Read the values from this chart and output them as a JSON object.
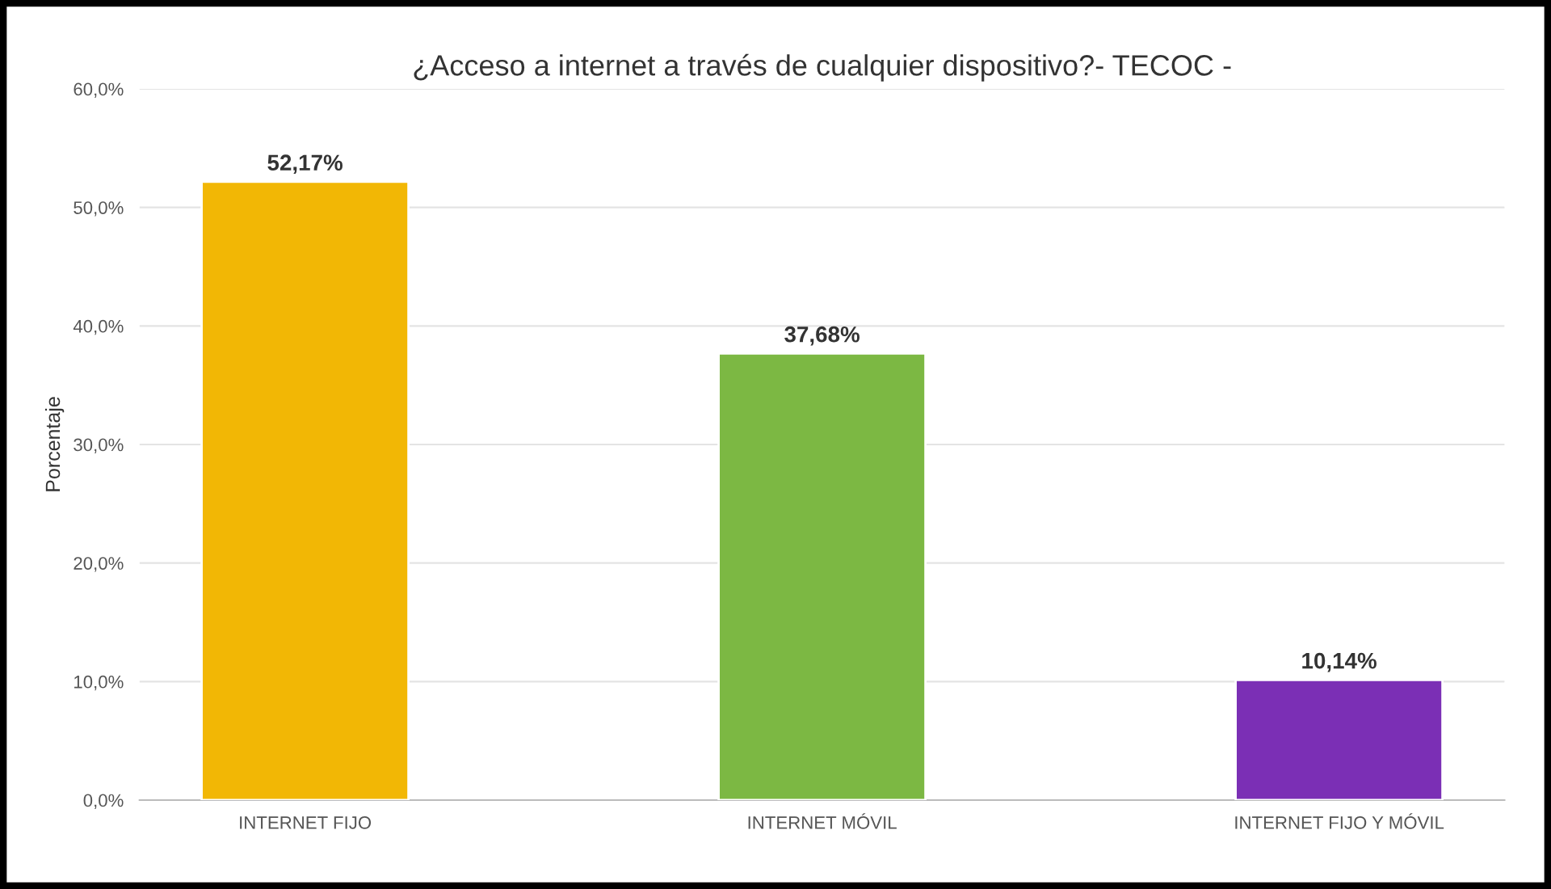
{
  "chart_data": {
    "type": "bar",
    "title": "¿Acceso a internet a través de cualquier dispositivo?- TECOC -",
    "ylabel": "Porcentaje",
    "categories": [
      "INTERNET FIJO",
      "INTERNET MÓVIL",
      "INTERNET FIJO Y MÓVIL"
    ],
    "values": [
      52.17,
      37.68,
      10.14
    ],
    "colors": [
      "#f2b705",
      "#7cb843",
      "#7b2fb5"
    ],
    "value_labels": [
      "52,17%",
      "37,68%",
      "10,14%"
    ],
    "ylim": [
      0,
      60
    ],
    "yticks": [
      {
        "value": 0,
        "label": "0,0%"
      },
      {
        "value": 10,
        "label": "10,0%"
      },
      {
        "value": 20,
        "label": "20,0%"
      },
      {
        "value": 30,
        "label": "30,0%"
      },
      {
        "value": 40,
        "label": "40,0%"
      },
      {
        "value": 50,
        "label": "50,0%"
      },
      {
        "value": 60,
        "label": "60,0%"
      }
    ],
    "grid": "y"
  }
}
